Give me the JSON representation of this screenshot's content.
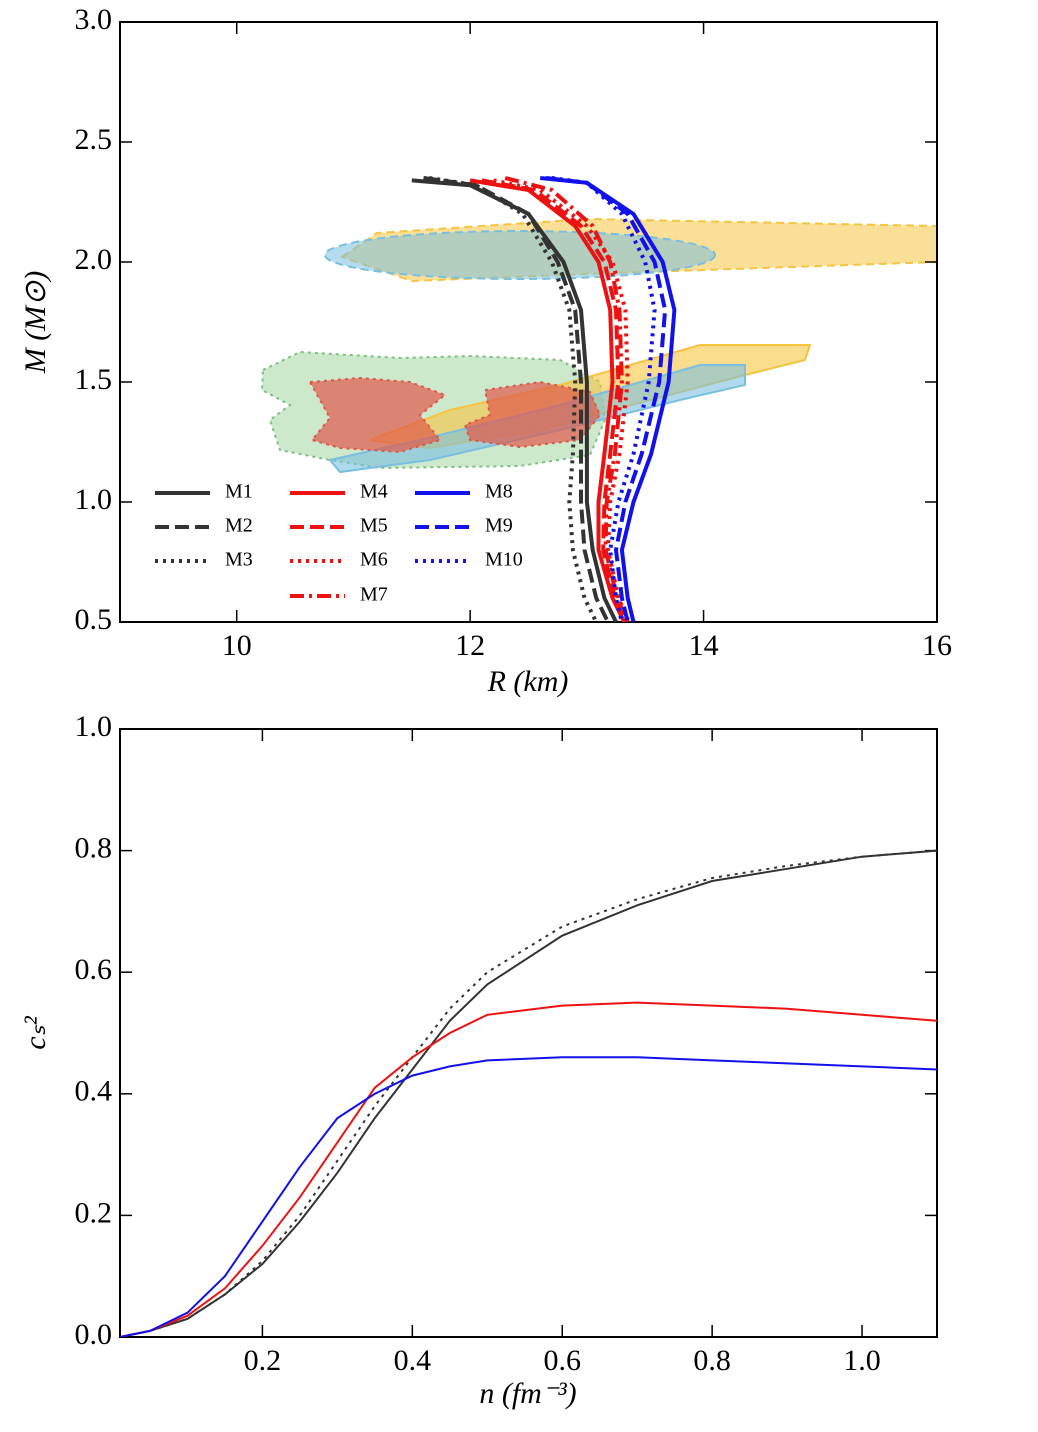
{
  "chart_data": [
    {
      "type": "line",
      "xlabel": "R (km)",
      "ylabel": "M (M⊙)",
      "xlim": [
        9,
        16
      ],
      "xticks": [
        10,
        12,
        14,
        16
      ],
      "ylim": [
        0.5,
        3.0
      ],
      "yticks": [
        0.5,
        {
          "value": 1.0,
          "label": "1.0"
        },
        1.5,
        {
          "value": 2.0,
          "label": "2.0"
        },
        2.5,
        {
          "value": 3.0,
          "label": "3.0"
        }
      ],
      "legend": "lower left",
      "series": [
        {
          "name": "M1",
          "color": "#333333",
          "linestyle": "solid",
          "x": [
            11.5,
            12.0,
            12.5,
            12.8,
            12.95,
            13.0,
            13.0,
            13.0,
            13.05,
            13.15,
            13.25
          ],
          "values": [
            2.34,
            2.32,
            2.2,
            2.0,
            1.8,
            1.5,
            1.2,
            1.0,
            0.8,
            0.6,
            0.5
          ]
        },
        {
          "name": "M2",
          "color": "#333333",
          "linestyle": "dashed",
          "x": [
            11.6,
            12.05,
            12.5,
            12.75,
            12.9,
            12.95,
            12.95,
            12.95,
            12.98,
            13.08,
            13.18
          ],
          "values": [
            2.35,
            2.32,
            2.2,
            2.0,
            1.8,
            1.5,
            1.2,
            1.0,
            0.8,
            0.6,
            0.5
          ]
        },
        {
          "name": "M3",
          "color": "#333333",
          "linestyle": "dotted",
          "x": [
            11.65,
            12.05,
            12.45,
            12.7,
            12.85,
            12.9,
            12.88,
            12.85,
            12.88,
            12.98,
            13.08
          ],
          "values": [
            2.35,
            2.32,
            2.2,
            2.0,
            1.8,
            1.5,
            1.2,
            1.0,
            0.8,
            0.6,
            0.5
          ]
        },
        {
          "name": "M4",
          "color": "#ee1111",
          "linestyle": "solid",
          "x": [
            12.0,
            12.5,
            12.9,
            13.1,
            13.2,
            13.22,
            13.15,
            13.1,
            13.1,
            13.22,
            13.32
          ],
          "values": [
            2.34,
            2.3,
            2.15,
            2.0,
            1.8,
            1.5,
            1.2,
            1.0,
            0.8,
            0.6,
            0.5
          ]
        },
        {
          "name": "M5",
          "color": "#ee1111",
          "linestyle": "dashed",
          "x": [
            12.1,
            12.55,
            12.95,
            13.15,
            13.25,
            13.27,
            13.2,
            13.15,
            13.14,
            13.24,
            13.34
          ],
          "values": [
            2.34,
            2.3,
            2.15,
            2.0,
            1.8,
            1.5,
            1.2,
            1.0,
            0.8,
            0.6,
            0.5
          ]
        },
        {
          "name": "M6",
          "color": "#ee1111",
          "linestyle": "dotted",
          "x": [
            12.2,
            12.6,
            13.0,
            13.22,
            13.33,
            13.35,
            13.28,
            13.2,
            13.18,
            13.27,
            13.36
          ],
          "values": [
            2.34,
            2.3,
            2.15,
            2.0,
            1.8,
            1.5,
            1.2,
            1.0,
            0.8,
            0.6,
            0.5
          ]
        },
        {
          "name": "M7",
          "color": "#ee1111",
          "linestyle": "dashdot",
          "x": [
            12.3,
            12.7,
            13.05,
            13.2,
            13.28,
            13.3,
            13.24,
            13.17,
            13.16,
            13.26,
            13.35
          ],
          "values": [
            2.35,
            2.3,
            2.15,
            2.0,
            1.8,
            1.5,
            1.2,
            1.0,
            0.8,
            0.6,
            0.5
          ]
        },
        {
          "name": "M8",
          "color": "#1111ee",
          "linestyle": "solid",
          "x": [
            12.6,
            13.0,
            13.4,
            13.65,
            13.75,
            13.7,
            13.55,
            13.4,
            13.3,
            13.35,
            13.4
          ],
          "values": [
            2.35,
            2.33,
            2.2,
            2.0,
            1.8,
            1.5,
            1.2,
            1.0,
            0.8,
            0.6,
            0.5
          ]
        },
        {
          "name": "M9",
          "color": "#1111ee",
          "linestyle": "dashed",
          "x": [
            12.65,
            13.0,
            13.35,
            13.58,
            13.67,
            13.62,
            13.47,
            13.33,
            13.25,
            13.3,
            13.35
          ],
          "values": [
            2.35,
            2.33,
            2.2,
            2.0,
            1.8,
            1.5,
            1.2,
            1.0,
            0.8,
            0.6,
            0.5
          ]
        },
        {
          "name": "M10",
          "color": "#1111ee",
          "linestyle": "dotted",
          "x": [
            12.7,
            13.0,
            13.3,
            13.5,
            13.58,
            13.53,
            13.4,
            13.27,
            13.2,
            13.25,
            13.3
          ],
          "values": [
            2.35,
            2.33,
            2.2,
            2.0,
            1.8,
            1.5,
            1.2,
            1.0,
            0.8,
            0.6,
            0.5
          ]
        }
      ]
    },
    {
      "type": "line",
      "xlabel": "n (fm⁻³)",
      "ylabel": "cₛ²",
      "xlim": [
        0.01,
        1.1
      ],
      "xticks": [
        0.2,
        0.4,
        0.6,
        0.8,
        {
          "value": 1.0,
          "label": "1.0"
        }
      ],
      "ylim": [
        0,
        1.0
      ],
      "yticks": [
        {
          "value": 0,
          "label": "0.0"
        },
        0.2,
        0.4,
        0.6,
        0.8,
        {
          "value": 1.0,
          "label": "1.0"
        }
      ],
      "x": [
        0.01,
        0.05,
        0.1,
        0.15,
        0.2,
        0.25,
        0.3,
        0.35,
        0.4,
        0.45,
        0.5,
        0.6,
        0.7,
        0.8,
        0.9,
        1.0,
        1.1
      ],
      "series": [
        {
          "color": "#333333",
          "linestyle": "solid",
          "values": [
            0,
            0.01,
            0.03,
            0.07,
            0.12,
            0.19,
            0.27,
            0.36,
            0.44,
            0.52,
            0.58,
            0.66,
            0.71,
            0.75,
            0.77,
            0.79,
            0.8
          ]
        },
        {
          "color": "#333333",
          "linestyle": "dotted",
          "values": [
            0,
            0.01,
            0.03,
            0.07,
            0.125,
            0.2,
            0.29,
            0.38,
            0.46,
            0.54,
            0.6,
            0.675,
            0.72,
            0.755,
            0.775,
            0.79,
            0.8
          ]
        },
        {
          "color": "#ee1111",
          "linestyle": "solid",
          "values": [
            0,
            0.01,
            0.035,
            0.08,
            0.15,
            0.23,
            0.32,
            0.41,
            0.46,
            0.5,
            0.53,
            0.545,
            0.55,
            0.545,
            0.54,
            0.53,
            0.52
          ]
        },
        {
          "color": "#1111ee",
          "linestyle": "solid",
          "values": [
            0,
            0.01,
            0.04,
            0.1,
            0.19,
            0.28,
            0.36,
            0.4,
            0.43,
            0.445,
            0.455,
            0.46,
            0.46,
            0.455,
            0.45,
            0.445,
            0.44
          ]
        }
      ]
    }
  ]
}
